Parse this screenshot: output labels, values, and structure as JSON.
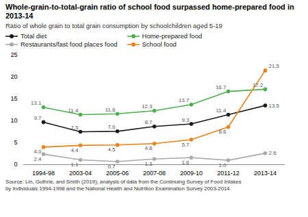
{
  "chart_data": {
    "type": "line",
    "title": "Whole-grain-to-total-grain ratio of school food surpassed home-prepared food in 2013-14",
    "subtitle": "Ratio of whole grain to total grain consumption by schoolchildren aged 5-19",
    "source": "Source: Lin, Guthrie, and Smith (2019); analysis of data from the Continuing Survey of Food Intakes\nby Individuals 1994-1998 and the National Health and Nutrition Examination Survey 2003-2014.",
    "categories": [
      "1994-98",
      "2003-04",
      "2005-06",
      "2007-08",
      "2009-10",
      "2011-12",
      "2013-14"
    ],
    "series": [
      {
        "name": "Total diet",
        "color": "#1a1a1a",
        "values": [
          9.7,
          7.5,
          7.6,
          8.7,
          9.3,
          11.4,
          13.5
        ],
        "value_labels": [
          "9.7",
          "7.5",
          "7.6",
          "8.7",
          "9.3",
          "11.4",
          "13.5"
        ]
      },
      {
        "name": "Home-prepared food",
        "color": "#4caf50",
        "values": [
          13.1,
          11.4,
          11.6,
          12.3,
          13.7,
          16.7,
          17.2
        ],
        "value_labels": [
          "13.1",
          "11.4",
          "11.6",
          "12.3",
          "13.7",
          "16.7",
          "17.2"
        ]
      },
      {
        "name": "Restaurants/fast food places food",
        "color": "#aaaaaa",
        "values": [
          2.4,
          1.1,
          0.7,
          1.3,
          1.6,
          1.0,
          2.6
        ],
        "value_labels": [
          "2.4",
          "1.1",
          "0.7",
          "1.3",
          "1.6",
          "1.0",
          "2.6"
        ]
      },
      {
        "name": "School food",
        "color": "#e8821a",
        "values": [
          4.0,
          4.4,
          4.5,
          4.8,
          5.7,
          8.6,
          21.5
        ],
        "value_labels": [
          "4.0",
          "4.4",
          "4.5",
          "4.8",
          "5.7",
          "8.6",
          "21.5"
        ]
      }
    ],
    "ylim": [
      0,
      25
    ],
    "yticks": [
      0,
      5,
      10,
      15,
      20,
      25
    ],
    "grid": false,
    "legend": "top",
    "marker": "circle",
    "data_labels": true
  }
}
